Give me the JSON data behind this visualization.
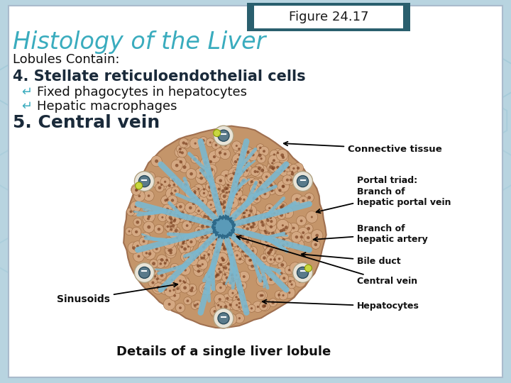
{
  "figure_label": "Figure 24.17",
  "title": "Histology of the Liver",
  "subtitle": "Lobules Contain:",
  "heading4": "4. Stellate reticuloendothelial cells",
  "bullet1": "Fixed phagocytes in hepatocytes",
  "bullet2": "Hepatic macrophages",
  "heading5": "5. Central vein",
  "caption": "Details of a single liver lobule",
  "bg_color": "#b8d4e0",
  "panel_color": "#ffffff",
  "header_outer_color": "#2a5f6e",
  "header_inner_color": "#ffffff",
  "header_text_color": "#1a1a1a",
  "title_color": "#3aacbe",
  "heading4_color": "#1a2a3a",
  "heading5_color": "#1a2a3a",
  "subtitle_color": "#111111",
  "bullet_text_color": "#111111",
  "bullet_symbol_color": "#3aacbe",
  "caption_color": "#111111",
  "label_color": "#111111"
}
